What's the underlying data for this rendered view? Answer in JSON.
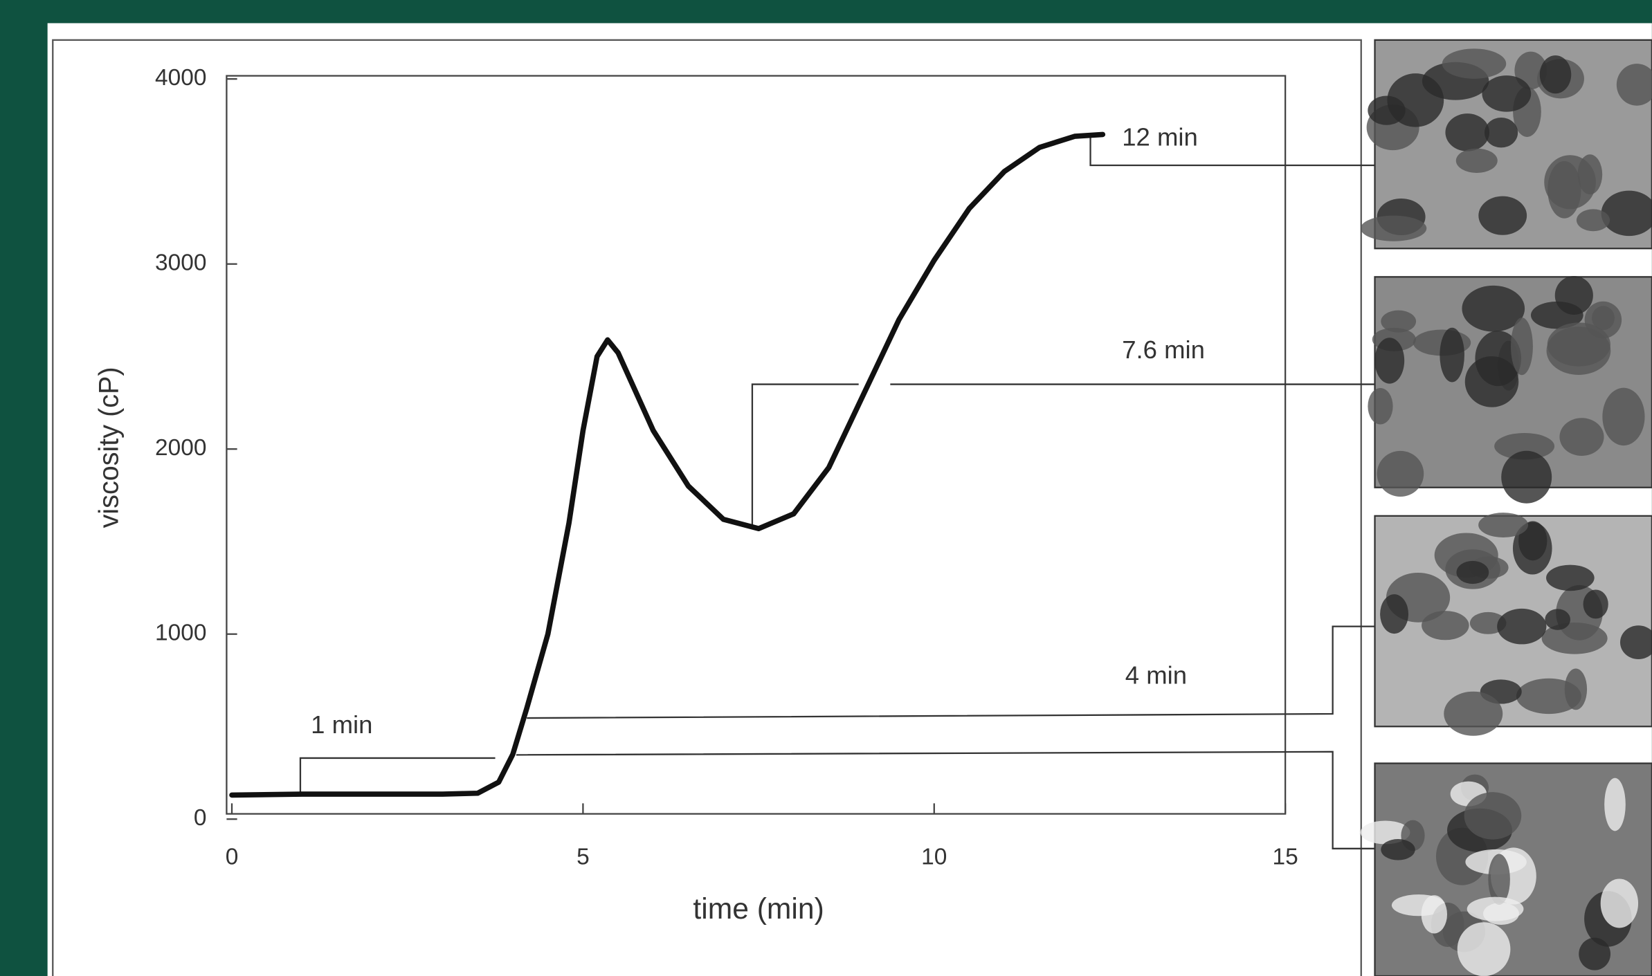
{
  "chart_data": {
    "type": "line",
    "x_label": "time (min)",
    "y_label": "viscosity (cP)",
    "x": [
      0,
      1,
      2,
      3,
      3.5,
      3.8,
      4,
      4.2,
      4.5,
      4.8,
      5.0,
      5.2,
      5.35,
      5.5,
      6,
      6.5,
      7,
      7.5,
      8,
      8.5,
      9,
      9.5,
      10,
      10.5,
      11,
      11.5,
      12,
      12.4
    ],
    "values": [
      130,
      135,
      135,
      135,
      140,
      200,
      350,
      600,
      1000,
      1600,
      2100,
      2500,
      2590,
      2520,
      2100,
      1800,
      1620,
      1570,
      1650,
      1900,
      2300,
      2700,
      3020,
      3300,
      3500,
      3630,
      3690,
      3700
    ],
    "color": "#111111",
    "xlim": [
      0,
      15
    ],
    "xticks": [
      0,
      5,
      10,
      15
    ],
    "ylim": [
      0,
      4000
    ],
    "yticks": [
      0,
      1000,
      2000,
      3000,
      4000
    ],
    "annotations": [
      "1 min",
      "4 min",
      "7.6 min",
      "12 min"
    ]
  }
}
